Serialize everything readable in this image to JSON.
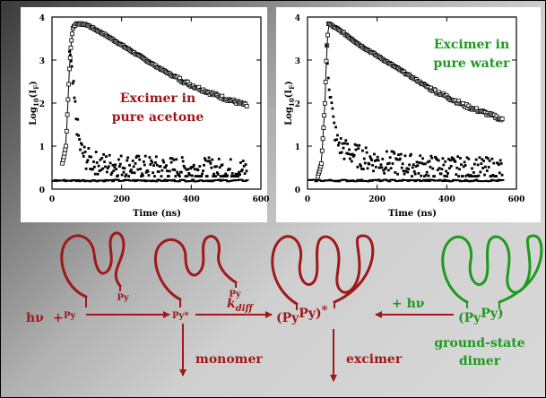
{
  "chart_data": [
    {
      "type": "scatter",
      "xlabel": "Time (ns)",
      "ylabel": "Log10(IF)",
      "xlim": [
        0,
        600
      ],
      "ylim": [
        0,
        4
      ],
      "xticks": [
        "0",
        "200",
        "400",
        "600"
      ],
      "yticks": [
        "0",
        "1",
        "2",
        "3",
        "4"
      ],
      "annotation": [
        "Excimer in",
        "pure acetone"
      ],
      "annotation_color": "#a01818",
      "series": [
        {
          "marker": "open-square",
          "x": [
            30,
            40,
            50,
            55,
            60,
            70,
            100,
            150,
            200,
            250,
            300,
            350,
            400,
            450,
            500,
            550,
            560
          ],
          "y": [
            0.6,
            1.0,
            2.8,
            3.4,
            3.75,
            3.85,
            3.82,
            3.6,
            3.35,
            3.1,
            2.85,
            2.62,
            2.42,
            2.25,
            2.1,
            1.97,
            1.93
          ]
        },
        {
          "marker": "filled-square",
          "x": [
            50,
            60,
            70,
            80,
            90,
            100,
            120,
            150,
            200,
            250,
            300,
            350,
            400,
            450,
            500,
            550
          ],
          "y": [
            3.2,
            2.4,
            1.6,
            1.0,
            0.8,
            0.7,
            0.62,
            0.58,
            0.55,
            0.52,
            0.5,
            0.48,
            0.47,
            0.46,
            0.45,
            0.44
          ]
        }
      ]
    },
    {
      "type": "scatter",
      "xlabel": "Time (ns)",
      "ylabel": "Log10(IF)",
      "xlim": [
        0,
        600
      ],
      "ylim": [
        0,
        4
      ],
      "xticks": [
        "0",
        "200",
        "400",
        "600"
      ],
      "yticks": [
        "0",
        "1",
        "2",
        "3",
        "4"
      ],
      "annotation": [
        "Excimer in",
        "pure water"
      ],
      "annotation_color": "#1e9a1e",
      "series": [
        {
          "marker": "open-square",
          "x": [
            30,
            40,
            50,
            55,
            60,
            70,
            100,
            150,
            200,
            250,
            300,
            350,
            400,
            450,
            500,
            550,
            560
          ],
          "y": [
            0.3,
            0.6,
            2.0,
            3.2,
            3.85,
            3.8,
            3.65,
            3.35,
            3.1,
            2.85,
            2.6,
            2.35,
            2.15,
            1.95,
            1.8,
            1.65,
            1.6
          ]
        },
        {
          "marker": "filled-square",
          "x": [
            55,
            65,
            75,
            85,
            100,
            120,
            150,
            200,
            250,
            300,
            350,
            400,
            450,
            500,
            550
          ],
          "y": [
            3.3,
            2.2,
            1.5,
            1.1,
            0.95,
            0.85,
            0.75,
            0.65,
            0.6,
            0.55,
            0.52,
            0.5,
            0.48,
            0.47,
            0.46
          ]
        }
      ]
    }
  ],
  "diagram": {
    "py": "Py",
    "hv": "hν",
    "plus": "+",
    "py_star": "Py*",
    "k": "k",
    "k_sub": "diff",
    "excimer_open": "(Py",
    "excimer_mid": "Py)",
    "excimer_star": "*",
    "plus_hv": "+ hν",
    "dimer_open": "(Py",
    "dimer_close": "Py)",
    "monomer": "monomer",
    "excimer": "excimer",
    "ground_state": [
      "ground-state",
      "dimer"
    ]
  },
  "colors": {
    "red": "#a01818",
    "green": "#1e9a1e"
  }
}
